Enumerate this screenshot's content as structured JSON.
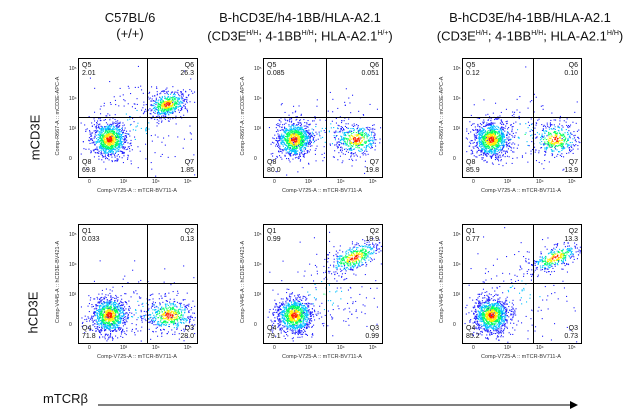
{
  "columns": [
    {
      "title_line1": "C57BL/6",
      "title_line2": "(+/+)"
    },
    {
      "title_line1": "B-hCD3E/h4-1BB/HLA-A2.1",
      "title_line2": "(CD3E",
      "sup_a": "H/H",
      "mid_a": "; 4-1BB",
      "sup_b": "H/H",
      "mid_b": "; HLA-A2.1",
      "sup_c": "H/+",
      "end": ")"
    },
    {
      "title_line1": "B-hCD3E/h4-1BB/HLA-A2.1",
      "title_line2": "(CD3E",
      "sup_a": "H/H",
      "mid_a": "; 4-1BB",
      "sup_b": "H/H",
      "mid_b": "; HLA-A2.1",
      "sup_c": "H/H",
      "end": ")"
    }
  ],
  "rows": [
    {
      "label": "mCD3E",
      "y_axis_title": "Comp-R667-A :: mCD3E-APC-A"
    },
    {
      "label": "hCD3E",
      "y_axis_title": "Comp-V445-A :: hCD3E-BV421-A"
    }
  ],
  "x_axis_title": "Comp-V725-A :: mTCR-BV711-A",
  "footer_label": "mTCRβ",
  "colors": {
    "high": "#ff2000",
    "mid": "#ffee00",
    "low1": "#00ff60",
    "low2": "#00c0ff",
    "sparse": "#2020ff"
  },
  "chart_data": [
    {
      "type": "scatter",
      "row": "mCD3E",
      "column": "C57BL/6 (+/+)",
      "quadrants": [
        {
          "name": "Q5",
          "value": "2.01"
        },
        {
          "name": "Q6",
          "value": "26.3"
        },
        {
          "name": "Q8",
          "value": "69.8"
        },
        {
          "name": "Q7",
          "value": "1.85"
        }
      ]
    },
    {
      "type": "scatter",
      "row": "mCD3E",
      "column": "B-hCD3E/h4-1BB/HLA-A2.1 (H/+)",
      "quadrants": [
        {
          "name": "Q5",
          "value": "0.085"
        },
        {
          "name": "Q6",
          "value": "0.051"
        },
        {
          "name": "Q8",
          "value": "80.0"
        },
        {
          "name": "Q7",
          "value": "19.8"
        }
      ]
    },
    {
      "type": "scatter",
      "row": "mCD3E",
      "column": "B-hCD3E/h4-1BB/HLA-A2.1 (H/H)",
      "quadrants": [
        {
          "name": "Q5",
          "value": "0.12"
        },
        {
          "name": "Q6",
          "value": "0.10"
        },
        {
          "name": "Q8",
          "value": "85.9"
        },
        {
          "name": "Q7",
          "value": "13.9"
        }
      ]
    },
    {
      "type": "scatter",
      "row": "hCD3E",
      "column": "C57BL/6 (+/+)",
      "quadrants": [
        {
          "name": "Q1",
          "value": "0.033"
        },
        {
          "name": "Q2",
          "value": "0.13"
        },
        {
          "name": "Q4",
          "value": "71.8"
        },
        {
          "name": "Q3",
          "value": "28.0"
        }
      ]
    },
    {
      "type": "scatter",
      "row": "hCD3E",
      "column": "B-hCD3E/h4-1BB/HLA-A2.1 (H/+)",
      "quadrants": [
        {
          "name": "Q1",
          "value": "0.99"
        },
        {
          "name": "Q2",
          "value": "18.9"
        },
        {
          "name": "Q4",
          "value": "79.1"
        },
        {
          "name": "Q3",
          "value": "0.99"
        }
      ]
    },
    {
      "type": "scatter",
      "row": "hCD3E",
      "column": "B-hCD3E/h4-1BB/HLA-A2.1 (H/H)",
      "quadrants": [
        {
          "name": "Q1",
          "value": "0.77"
        },
        {
          "name": "Q2",
          "value": "13.3"
        },
        {
          "name": "Q4",
          "value": "85.2"
        },
        {
          "name": "Q3",
          "value": "0.73"
        }
      ]
    }
  ]
}
